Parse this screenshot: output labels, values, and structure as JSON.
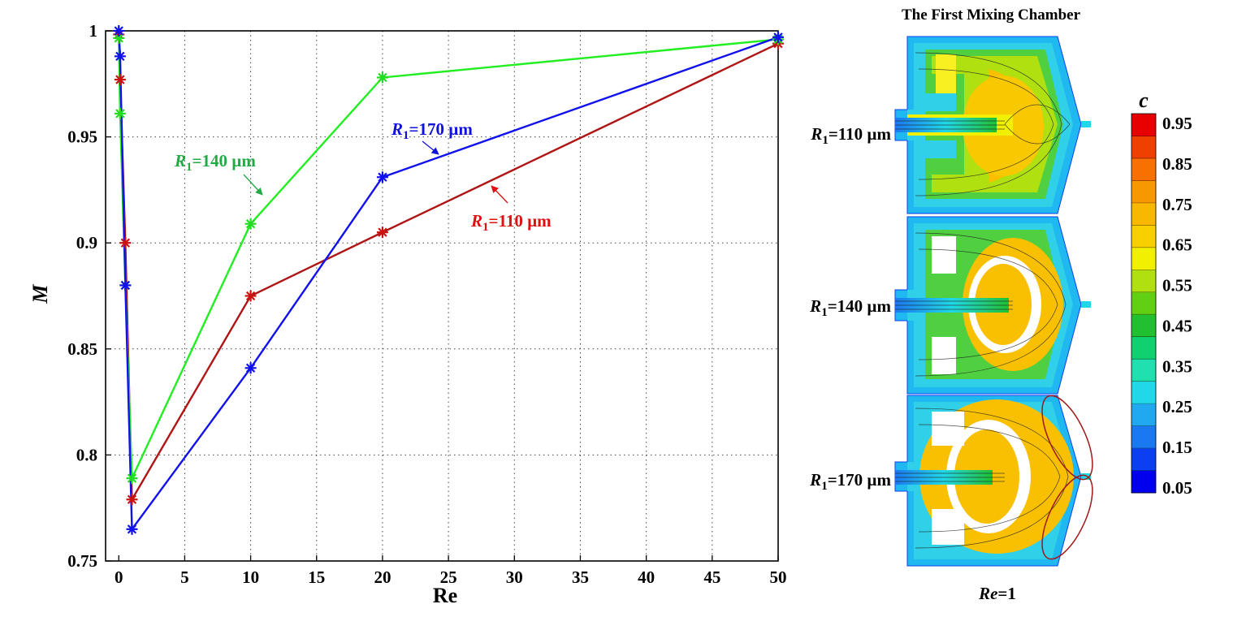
{
  "chart_data": [
    {
      "type": "line",
      "xlabel": "Re",
      "ylabel": "M",
      "xlim": [
        -1,
        50
      ],
      "ylim": [
        0.75,
        1.0
      ],
      "x_ticks": [
        "0",
        "5",
        "10",
        "15",
        "20",
        "25",
        "30",
        "35",
        "40",
        "45",
        "50"
      ],
      "y_ticks": [
        "0.75",
        "0.8",
        "0.85",
        "0.9",
        "0.95",
        "1"
      ],
      "grid": true,
      "series": [
        {
          "name": "R1=110 µm",
          "color": "#cc1111",
          "line_color": "#b01515",
          "x": [
            0,
            0.1,
            0.5,
            1,
            10,
            20,
            50
          ],
          "y": [
            0.9983,
            0.977,
            0.9,
            0.779,
            0.875,
            0.905,
            0.994
          ]
        },
        {
          "name": "R1=140 µm",
          "color": "#22dd22",
          "line_color": "#22ee22",
          "x": [
            0,
            0.1,
            0.5,
            1,
            10,
            20,
            50
          ],
          "y": [
            0.9966,
            0.961,
            0.88,
            0.789,
            0.909,
            0.978,
            0.996
          ]
        },
        {
          "name": "R1=170 µm",
          "color": "#1111ee",
          "line_color": "#1111ee",
          "x": [
            0,
            0.1,
            0.5,
            1,
            10,
            20,
            50
          ],
          "y": [
            1.0,
            0.988,
            0.88,
            0.765,
            0.841,
            0.931,
            0.997
          ]
        }
      ],
      "annotations": [
        {
          "id": "ann-110",
          "prefix": "R",
          "sub": "1",
          "text": "=110 µm",
          "color": "#e01010"
        },
        {
          "id": "ann-140",
          "prefix": "R",
          "sub": "1",
          "text": "=140 µm",
          "color": "#22aa44"
        },
        {
          "id": "ann-170",
          "prefix": "R",
          "sub": "1",
          "text": "=170 µm",
          "color": "#1111dd"
        }
      ]
    },
    {
      "type": "heatmap",
      "title": "The First Mixing Chamber",
      "xlabel_prefix": "Re",
      "xlabel_suffix": "=1",
      "row_labels": [
        {
          "prefix": "R",
          "sub": "1",
          "text": "=110 µm"
        },
        {
          "prefix": "R",
          "sub": "1",
          "text": "=140 µm"
        },
        {
          "prefix": "R",
          "sub": "1",
          "text": "=170 µm"
        }
      ],
      "colorbar": {
        "label": "c",
        "ticks": [
          "0.95",
          "0.85",
          "0.75",
          "0.65",
          "0.55",
          "0.45",
          "0.35",
          "0.25",
          "0.15",
          "0.05"
        ],
        "colors": [
          "#0000ee",
          "#0a40f2",
          "#1a78f0",
          "#20a8f0",
          "#20d8e8",
          "#20e0b0",
          "#10d070",
          "#20c030",
          "#60d010",
          "#b0e010",
          "#f0f000",
          "#f8d000",
          "#f8b800",
          "#f89800",
          "#f87000",
          "#f04000",
          "#e80000"
        ]
      }
    }
  ]
}
